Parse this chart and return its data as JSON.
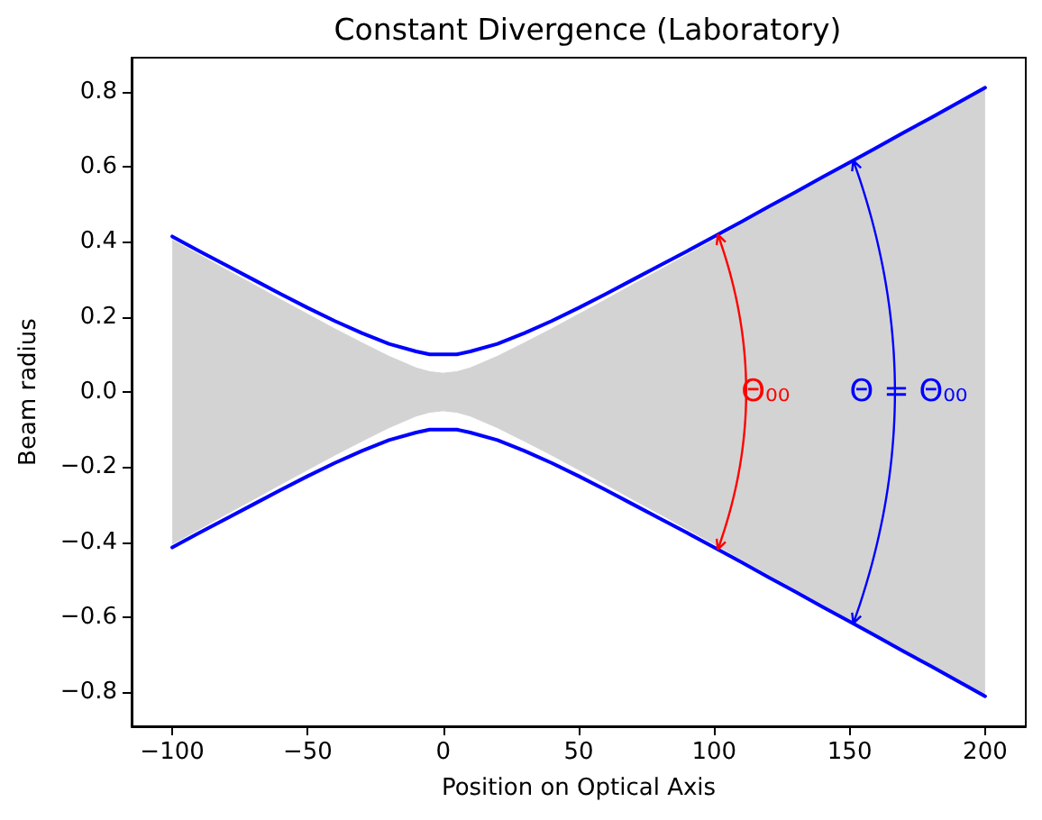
{
  "chart_data": {
    "type": "line",
    "title": "Constant Divergence (Laboratory)",
    "xlabel": "Position on Optical Axis",
    "ylabel": "Beam radius",
    "x": [
      -100,
      -90,
      -80,
      -70,
      -60,
      -50,
      -40,
      -30,
      -20,
      -10,
      -5,
      0,
      5,
      10,
      20,
      30,
      40,
      50,
      60,
      70,
      80,
      90,
      100,
      110,
      120,
      130,
      140,
      150,
      160,
      170,
      180,
      190,
      200
    ],
    "series": [
      {
        "type": "area",
        "color": "#d3d3d3",
        "values": [
          0.405,
          0.365,
          0.325,
          0.286,
          0.246,
          0.207,
          0.168,
          0.131,
          0.095,
          0.064,
          0.054,
          0.05,
          0.054,
          0.064,
          0.095,
          0.131,
          0.168,
          0.207,
          0.246,
          0.286,
          0.325,
          0.365,
          0.405,
          0.445,
          0.485,
          0.525,
          0.565,
          0.605,
          0.645,
          0.685,
          0.725,
          0.765,
          0.806
        ]
      },
      {
        "type": "area",
        "color": "#d3d3d3",
        "values": [
          -0.405,
          -0.365,
          -0.325,
          -0.286,
          -0.246,
          -0.207,
          -0.168,
          -0.131,
          -0.095,
          -0.064,
          -0.054,
          -0.05,
          -0.054,
          -0.064,
          -0.095,
          -0.131,
          -0.168,
          -0.207,
          -0.246,
          -0.286,
          -0.325,
          -0.365,
          -0.405,
          -0.445,
          -0.485,
          -0.525,
          -0.565,
          -0.605,
          -0.645,
          -0.685,
          -0.725,
          -0.765,
          -0.806
        ]
      },
      {
        "color": "#0000ff",
        "values": [
          0.414,
          0.375,
          0.337,
          0.299,
          0.261,
          0.224,
          0.189,
          0.157,
          0.128,
          0.108,
          0.1,
          0.1,
          0.1,
          0.108,
          0.128,
          0.157,
          0.189,
          0.224,
          0.261,
          0.299,
          0.337,
          0.375,
          0.414,
          0.453,
          0.493,
          0.532,
          0.572,
          0.611,
          0.651,
          0.691,
          0.73,
          0.77,
          0.81
        ]
      },
      {
        "color": "#0000ff",
        "values": [
          -0.414,
          -0.375,
          -0.337,
          -0.299,
          -0.261,
          -0.224,
          -0.189,
          -0.157,
          -0.128,
          -0.108,
          -0.1,
          -0.1,
          -0.1,
          -0.108,
          -0.128,
          -0.157,
          -0.189,
          -0.224,
          -0.261,
          -0.299,
          -0.337,
          -0.375,
          -0.414,
          -0.453,
          -0.493,
          -0.532,
          -0.572,
          -0.611,
          -0.651,
          -0.691,
          -0.73,
          -0.77,
          -0.81
        ]
      }
    ],
    "xlim": [
      -115,
      215
    ],
    "xticks": [
      {
        "value": -100,
        "label": "−100"
      },
      {
        "value": -50,
        "label": "−50"
      },
      0,
      50,
      100,
      150,
      200
    ],
    "ylim": [
      -0.89,
      0.89
    ],
    "yticks": [
      {
        "value": -0.8,
        "label": "−0.8"
      },
      {
        "value": -0.6,
        "label": "−0.6"
      },
      {
        "value": -0.4,
        "label": "−0.4"
      },
      {
        "value": -0.2,
        "label": "−0.2"
      },
      {
        "value": 0,
        "label": "0.0"
      },
      0.2,
      0.4,
      0.6,
      0.8
    ],
    "annotations": [
      {
        "text": "Θ₀₀",
        "x": 110,
        "y": 0
      },
      {
        "text": "Θ = Θ₀₀",
        "x": 150,
        "y": 0
      }
    ],
    "grid": false,
    "line_style": "solid"
  }
}
